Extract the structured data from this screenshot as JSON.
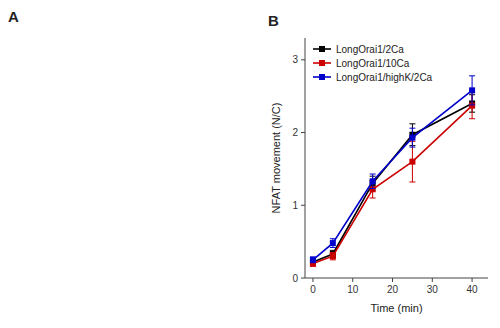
{
  "chart_data": {
    "type": "line",
    "annotations": [
      "A",
      "B"
    ],
    "xlabel": "Time (min)",
    "ylabel": "NFAT movement (N/C)",
    "x": [
      0,
      5,
      15,
      25,
      40
    ],
    "series": [
      {
        "name": "LongOrai1/2Ca",
        "color": "#000000",
        "values": [
          0.22,
          0.33,
          1.3,
          1.97,
          2.4
        ],
        "errors": [
          0.04,
          0.05,
          0.1,
          0.15,
          0.12
        ]
      },
      {
        "name": "LongOrai1/10Ca",
        "color": "#cc0000",
        "values": [
          0.2,
          0.3,
          1.22,
          1.6,
          2.37
        ],
        "errors": [
          0.04,
          0.05,
          0.12,
          0.28,
          0.18
        ]
      },
      {
        "name": "LongOrai1/highK/2Ca",
        "color": "#0000cc",
        "values": [
          0.25,
          0.48,
          1.33,
          1.93,
          2.58
        ],
        "errors": [
          0.04,
          0.06,
          0.1,
          0.13,
          0.2
        ]
      }
    ],
    "xlim": [
      -2,
      44
    ],
    "ylim": [
      0,
      3.3
    ],
    "xticks": [
      0,
      10,
      20,
      30,
      40
    ],
    "yticks": [
      0,
      1,
      2,
      3
    ],
    "marker": "square",
    "legend": "upper left",
    "grid": false
  }
}
